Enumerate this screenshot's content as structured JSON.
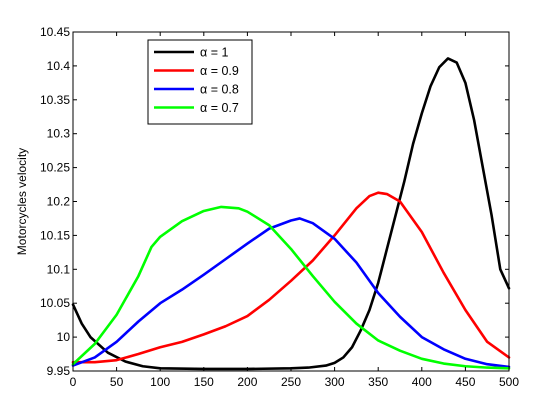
{
  "chart_data": {
    "type": "line",
    "title": "",
    "xlabel": "",
    "ylabel": "Motorcycles velocity",
    "xlim": [
      0,
      500
    ],
    "ylim": [
      9.95,
      10.45
    ],
    "xticks": [
      0,
      50,
      100,
      150,
      200,
      250,
      300,
      350,
      400,
      450,
      500
    ],
    "yticks": [
      9.95,
      10,
      10.05,
      10.1,
      10.15,
      10.2,
      10.25,
      10.3,
      10.35,
      10.4,
      10.45
    ],
    "ytick_labels": [
      "9.95",
      "10",
      "10.05",
      "10.1",
      "10.15",
      "10.2",
      "10.25",
      "10.3",
      "10.35",
      "10.4",
      "10.45"
    ],
    "grid": false,
    "legend_position": "top-left",
    "series": [
      {
        "name": "α = 1",
        "color": "#000000",
        "x": [
          0,
          10,
          20,
          40,
          60,
          80,
          100,
          150,
          200,
          250,
          270,
          290,
          300,
          310,
          320,
          330,
          340,
          350,
          360,
          370,
          380,
          390,
          400,
          410,
          420,
          430,
          440,
          450,
          460,
          470,
          480,
          490,
          500
        ],
        "y": [
          10.048,
          10.02,
          10.0,
          9.977,
          9.964,
          9.957,
          9.954,
          9.953,
          9.953,
          9.954,
          9.955,
          9.958,
          9.962,
          9.97,
          9.985,
          10.01,
          10.04,
          10.08,
          10.13,
          10.18,
          10.23,
          10.285,
          10.33,
          10.37,
          10.398,
          10.411,
          10.405,
          10.375,
          10.32,
          10.25,
          10.18,
          10.1,
          10.072
        ]
      },
      {
        "name": "α = 0.9",
        "color": "#ff0000",
        "x": [
          0,
          25,
          50,
          75,
          100,
          125,
          150,
          175,
          200,
          225,
          250,
          275,
          300,
          325,
          340,
          350,
          360,
          375,
          400,
          425,
          450,
          475,
          500
        ],
        "y": [
          9.963,
          9.963,
          9.966,
          9.975,
          9.985,
          9.993,
          10.004,
          10.016,
          10.031,
          10.055,
          10.083,
          10.113,
          10.15,
          10.19,
          10.208,
          10.213,
          10.211,
          10.2,
          10.155,
          10.095,
          10.04,
          9.993,
          9.97
        ]
      },
      {
        "name": "α = 0.8",
        "color": "#0000ff",
        "x": [
          0,
          25,
          50,
          75,
          100,
          125,
          150,
          175,
          200,
          225,
          250,
          260,
          275,
          300,
          325,
          350,
          375,
          400,
          425,
          450,
          475,
          500
        ],
        "y": [
          9.958,
          9.97,
          9.993,
          10.023,
          10.05,
          10.07,
          10.092,
          10.115,
          10.138,
          10.16,
          10.172,
          10.175,
          10.168,
          10.145,
          10.11,
          10.065,
          10.03,
          10.0,
          9.982,
          9.968,
          9.96,
          9.956
        ]
      },
      {
        "name": "α = 0.7",
        "color": "#00ff00",
        "x": [
          0,
          25,
          50,
          75,
          90,
          100,
          125,
          150,
          170,
          190,
          200,
          225,
          250,
          275,
          300,
          325,
          350,
          375,
          400,
          425,
          450,
          475,
          500
        ],
        "y": [
          9.96,
          9.99,
          10.033,
          10.09,
          10.133,
          10.148,
          10.171,
          10.186,
          10.192,
          10.19,
          10.185,
          10.165,
          10.13,
          10.09,
          10.052,
          10.02,
          9.995,
          9.98,
          9.968,
          9.961,
          9.957,
          9.955,
          9.954
        ]
      }
    ]
  }
}
